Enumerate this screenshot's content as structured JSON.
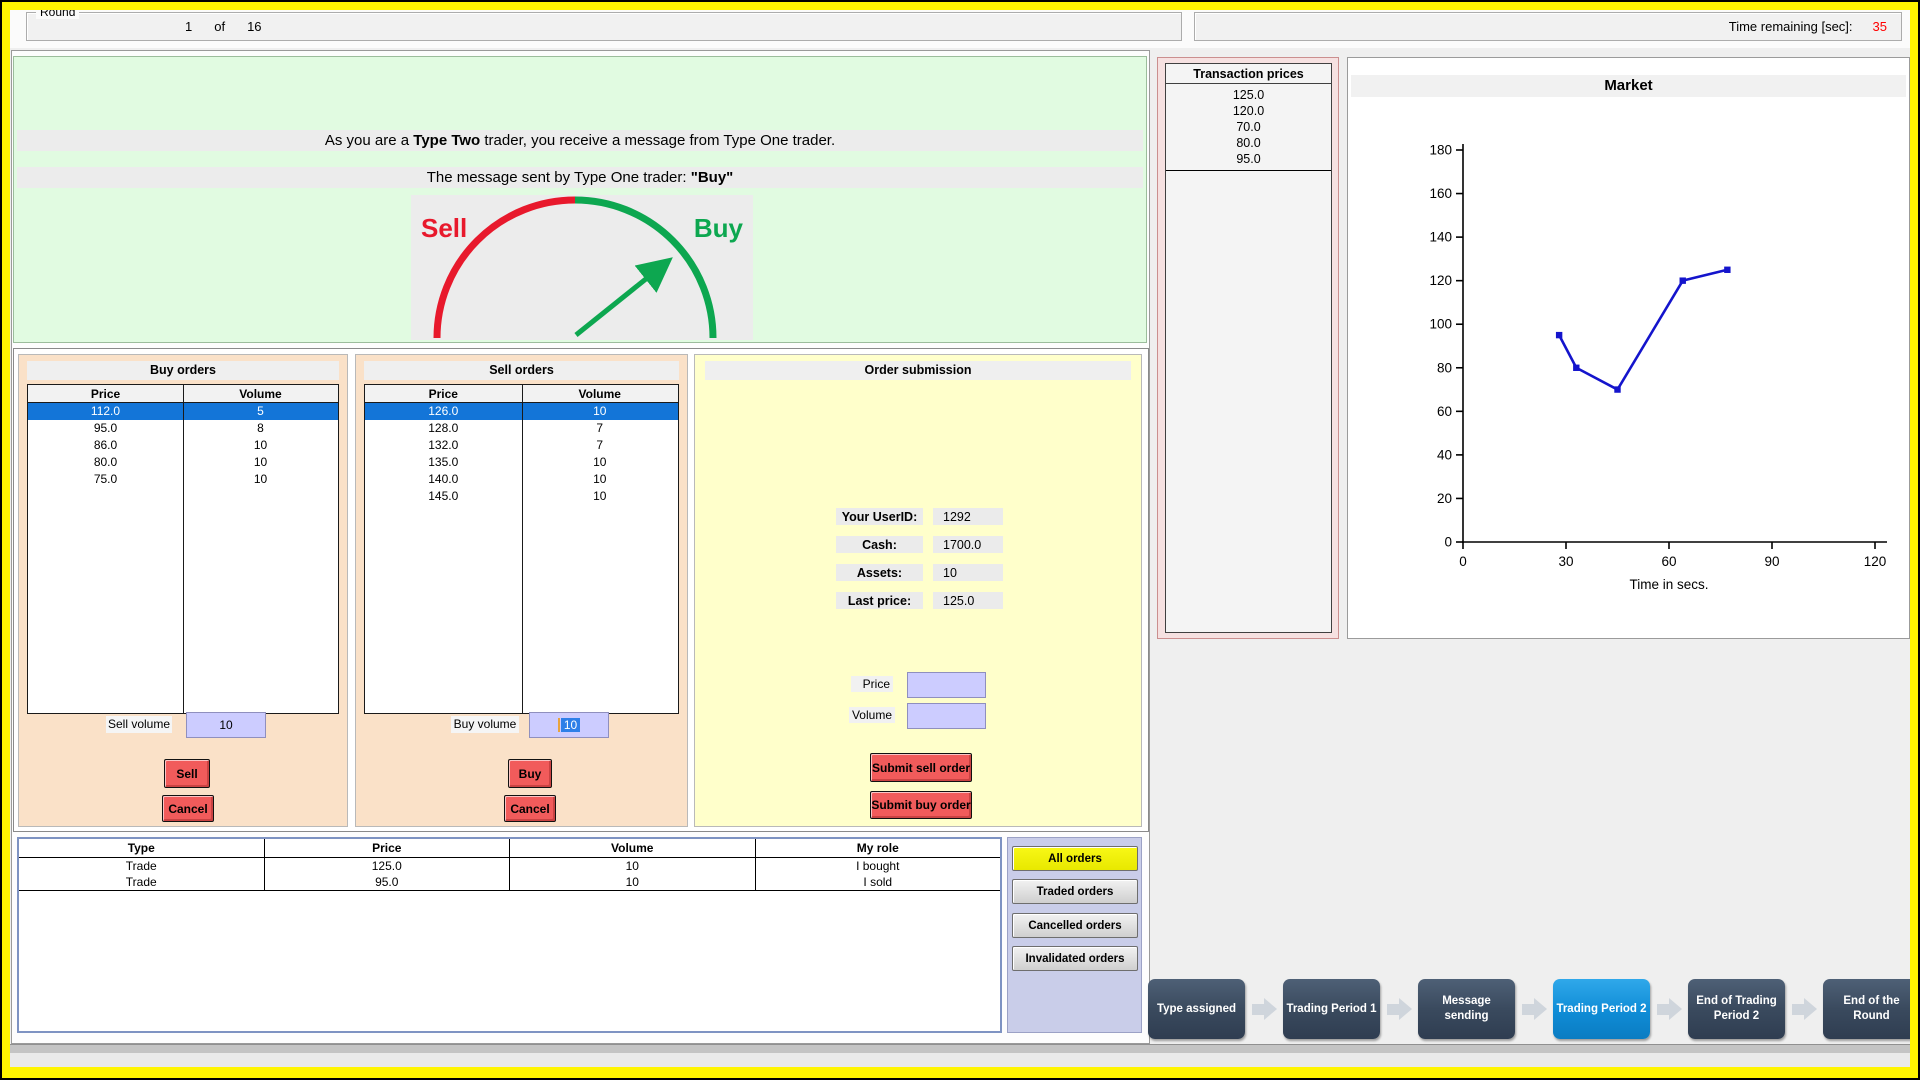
{
  "top": {
    "round_label": "Round",
    "round_current": "1",
    "round_of": "of",
    "round_total": "16",
    "time_label": "Time remaining [sec]:",
    "time_value": "35"
  },
  "message": {
    "line1_pre": "As you are a ",
    "line1_bold": "Type Two",
    "line1_post": " trader, you receive a message from Type One trader.",
    "line2_pre": "The message sent by Type One trader: ",
    "line2_bold": "\"Buy\"",
    "gauge_sell": "Sell",
    "gauge_buy": "Buy"
  },
  "buy_orders": {
    "title": "Buy orders",
    "columns": [
      "Price",
      "Volume"
    ],
    "rows": [
      [
        "112.0",
        "5"
      ],
      [
        "95.0",
        "8"
      ],
      [
        "86.0",
        "10"
      ],
      [
        "80.0",
        "10"
      ],
      [
        "75.0",
        "10"
      ]
    ],
    "selected_row": 0,
    "volume_label": "Sell volume",
    "volume_value": "10",
    "action_button": "Sell",
    "cancel_button": "Cancel"
  },
  "sell_orders": {
    "title": "Sell orders",
    "columns": [
      "Price",
      "Volume"
    ],
    "rows": [
      [
        "126.0",
        "10"
      ],
      [
        "128.0",
        "7"
      ],
      [
        "132.0",
        "7"
      ],
      [
        "135.0",
        "10"
      ],
      [
        "140.0",
        "10"
      ],
      [
        "145.0",
        "10"
      ]
    ],
    "selected_row": 0,
    "volume_label": "Buy volume",
    "volume_value": "10",
    "volume_text_selected": true,
    "action_button": "Buy",
    "cancel_button": "Cancel"
  },
  "order_submission": {
    "title": "Order submission",
    "fields": [
      {
        "label": "Your UserID:",
        "value": "1292"
      },
      {
        "label": "Cash:",
        "value": "1700.0"
      },
      {
        "label": "Assets:",
        "value": "10"
      },
      {
        "label": "Last price:",
        "value": "125.0"
      }
    ],
    "price_label": "Price",
    "price_value": "",
    "volume_label": "Volume",
    "volume_value": "",
    "submit_sell_button": "Submit sell order",
    "submit_buy_button": "Submit buy order"
  },
  "trades": {
    "columns": [
      "Type",
      "Price",
      "Volume",
      "My role"
    ],
    "rows": [
      [
        "Trade",
        "125.0",
        "10",
        "I bought"
      ],
      [
        "Trade",
        "95.0",
        "10",
        "I sold"
      ]
    ]
  },
  "filters": {
    "buttons": [
      {
        "label": "All orders",
        "active": true
      },
      {
        "label": "Traded orders",
        "active": false
      },
      {
        "label": "Cancelled orders",
        "active": false
      },
      {
        "label": "Invalidated orders",
        "active": false
      }
    ]
  },
  "transaction_prices": {
    "title": "Transaction prices",
    "values": [
      "125.0",
      "120.0",
      "70.0",
      "80.0",
      "95.0"
    ]
  },
  "chart_data": {
    "type": "line",
    "title": "Market",
    "xlabel": "Time in secs.",
    "x": [
      28,
      33,
      45,
      64,
      77
    ],
    "y": [
      95,
      80,
      70,
      120,
      125
    ],
    "xlim": [
      0,
      120
    ],
    "ylim": [
      0,
      180
    ],
    "xticks": [
      0,
      30,
      60,
      90,
      120
    ],
    "yticks": [
      0,
      20,
      40,
      60,
      80,
      100,
      120,
      140,
      160,
      180
    ],
    "line_color": "#1414CC",
    "grid": false
  },
  "flow": {
    "steps": [
      {
        "label": "Type assigned",
        "active": false
      },
      {
        "label": "Trading Period 1",
        "active": false
      },
      {
        "label": "Message sending",
        "active": false
      },
      {
        "label": "Trading Period 2",
        "active": true
      },
      {
        "label": "End of Trading Period 2",
        "active": false
      },
      {
        "label": "End of the Round",
        "active": false
      }
    ]
  },
  "colors": {
    "selected_row": "#1375D8",
    "buy_green": "#0DA750",
    "sell_red": "#E8192C",
    "chart_line": "#1414CC",
    "active_step": "#0F8CD6",
    "timer_red": "#FF0000"
  }
}
